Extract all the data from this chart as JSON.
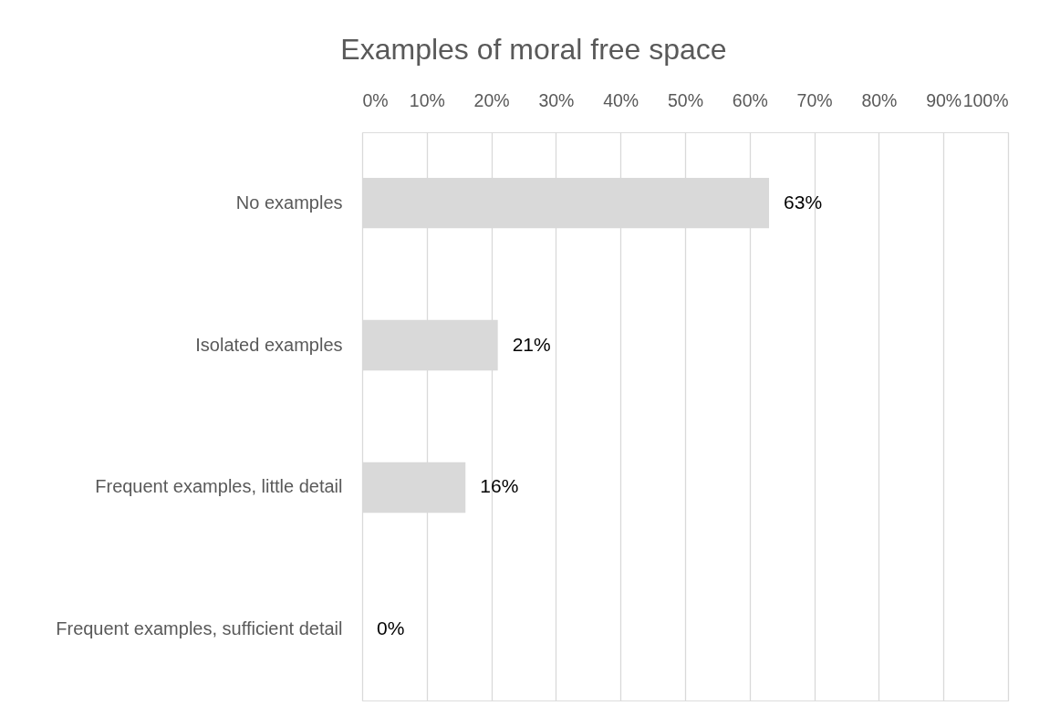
{
  "chart_data": {
    "type": "bar",
    "title": "Examples of moral free space",
    "orientation": "horizontal",
    "categories": [
      "No examples",
      "Isolated examples",
      "Frequent examples, little detail",
      "Frequent examples, sufficient detail"
    ],
    "series": [
      {
        "color": "#d9d9d9",
        "values": [
          63,
          21,
          16,
          0
        ],
        "value_labels": [
          "63%",
          "21%",
          "16%",
          "0%"
        ]
      }
    ],
    "xlim": [
      0,
      100
    ],
    "xticks": [
      {
        "value": 0,
        "label": "0%"
      },
      {
        "value": 10,
        "label": "10%"
      },
      {
        "value": 20,
        "label": "20%"
      },
      {
        "value": 30,
        "label": "30%"
      },
      {
        "value": 40,
        "label": "40%"
      },
      {
        "value": 50,
        "label": "50%"
      },
      {
        "value": 60,
        "label": "60%"
      },
      {
        "value": 70,
        "label": "70%"
      },
      {
        "value": 80,
        "label": "80%"
      },
      {
        "value": 90,
        "label": "90%"
      },
      {
        "value": 100,
        "label": "100%"
      }
    ],
    "grid": "x"
  }
}
